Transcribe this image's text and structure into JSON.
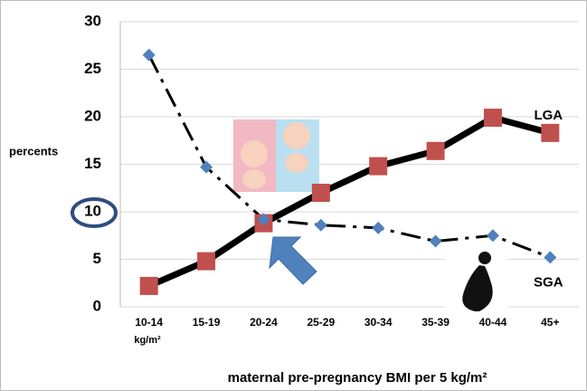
{
  "chart_data": {
    "type": "line",
    "y_label": "percents",
    "x_label": "maternal pre-pregnancy BMI per 5 kg/m²",
    "category_unit": "kg/m²",
    "categories": [
      "10-14",
      "15-19",
      "20-24",
      "25-29",
      "30-34",
      "35-39",
      "40-44",
      "45+"
    ],
    "series": [
      {
        "name": "LGA",
        "color": "#c0504d",
        "values": [
          2.2,
          4.8,
          8.8,
          12.0,
          14.8,
          16.4,
          19.9,
          18.3
        ]
      },
      {
        "name": "SGA",
        "color": "#4f81bd",
        "values": [
          26.5,
          14.7,
          9.2,
          8.6,
          8.3,
          6.9,
          7.5,
          5.2
        ]
      }
    ],
    "ylim": [
      0,
      30
    ],
    "yticks": [
      0,
      5,
      10,
      15,
      20,
      25,
      30
    ],
    "grid": true
  }
}
